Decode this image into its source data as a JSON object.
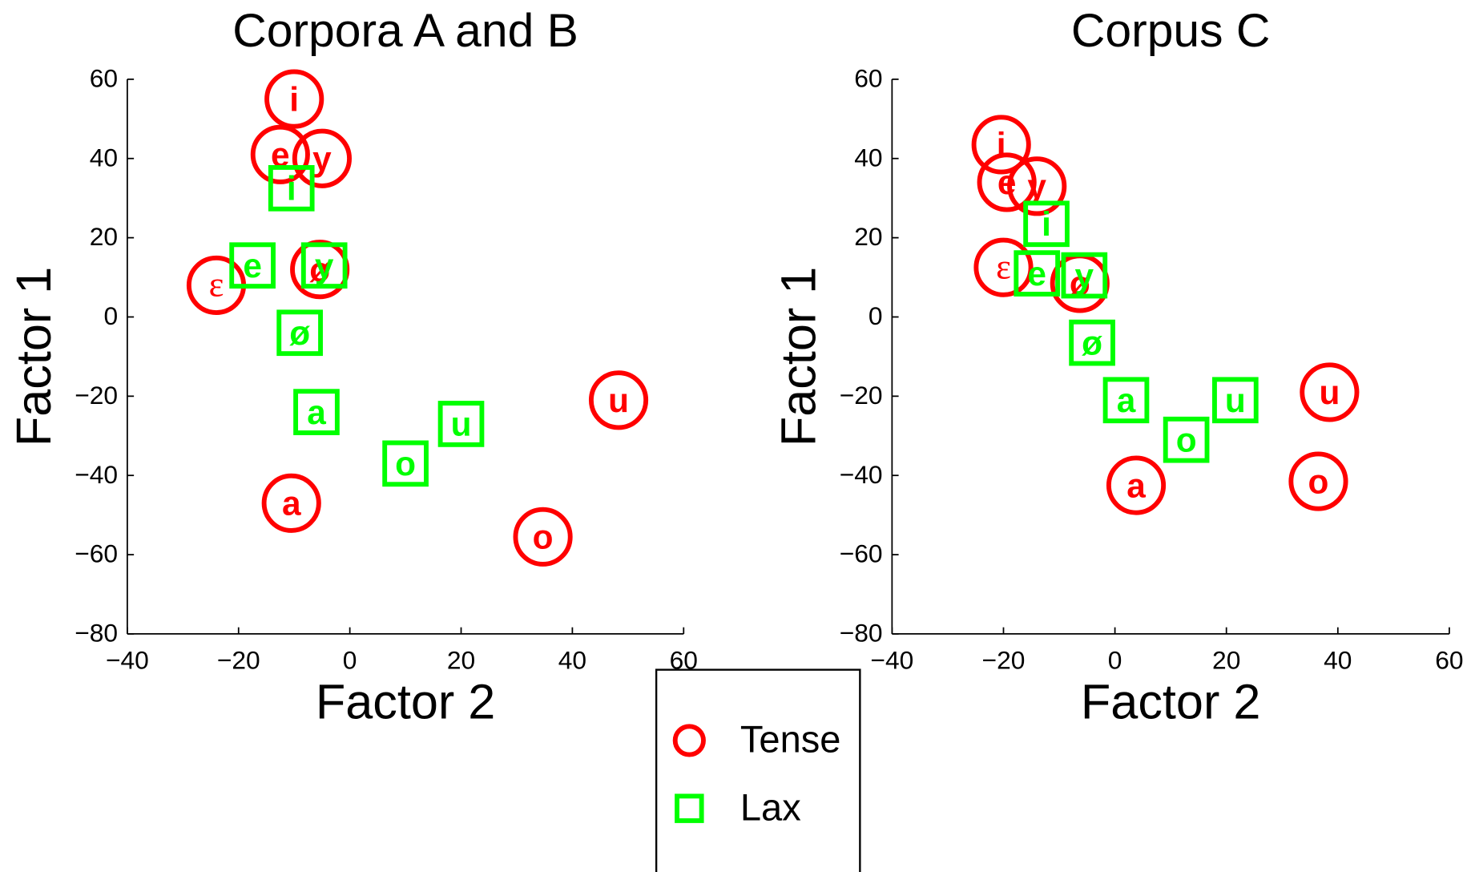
{
  "chart_data": [
    {
      "type": "scatter",
      "title": "Corpora A and B",
      "x_label": "Factor 2",
      "y_label": "Factor 1",
      "xlim": [
        -40,
        60
      ],
      "ylim": [
        -80,
        60
      ],
      "xticks": [
        {
          "value": -40,
          "label": "−40"
        },
        {
          "value": -20,
          "label": "−20"
        },
        0,
        20,
        40,
        60
      ],
      "yticks": [
        {
          "value": -80,
          "label": "−80"
        },
        {
          "value": -60,
          "label": "−60"
        },
        {
          "value": -40,
          "label": "−40"
        },
        {
          "value": -20,
          "label": "−20"
        },
        0,
        20,
        40,
        60
      ],
      "series": [
        {
          "name": "Tense",
          "marker": "circle",
          "color": "#ff0000",
          "labels": [
            "i",
            "e",
            "y",
            "ε",
            "ø",
            "a",
            "u",
            "o"
          ],
          "x": [
            -10,
            -12.5,
            -5,
            -24,
            -5.4,
            -10.5,
            48.3,
            34.7
          ],
          "values": [
            55,
            41,
            40,
            8,
            12,
            -47,
            -21,
            -55.5
          ]
        },
        {
          "name": "Lax",
          "marker": "square",
          "color": "#00ff00",
          "labels": [
            "i",
            "e",
            "y",
            "ø",
            "a",
            "u",
            "o"
          ],
          "x": [
            -10.5,
            -17.5,
            -4.6,
            -9,
            -6,
            20,
            10
          ],
          "values": [
            32.5,
            13,
            13,
            -4,
            -24,
            -27,
            -37
          ]
        }
      ]
    },
    {
      "type": "scatter",
      "title": "Corpus C",
      "x_label": "Factor 2",
      "y_label": "Factor 1",
      "xlim": [
        -40,
        60
      ],
      "ylim": [
        -80,
        60
      ],
      "xticks": [
        {
          "value": -40,
          "label": "−40"
        },
        {
          "value": -20,
          "label": "−20"
        },
        0,
        20,
        40,
        60
      ],
      "yticks": [
        {
          "value": -80,
          "label": "−80"
        },
        {
          "value": -60,
          "label": "−60"
        },
        {
          "value": -40,
          "label": "−40"
        },
        {
          "value": -20,
          "label": "−20"
        },
        0,
        20,
        40,
        60
      ],
      "series": [
        {
          "marker": "circle",
          "color": "#ff0000",
          "labels": [
            "i",
            "e",
            "y",
            "ε",
            "ø",
            "a",
            "u",
            "o"
          ],
          "x": [
            -20.4,
            -19.4,
            -14,
            -20,
            -6.3,
            3.8,
            38.5,
            36.5
          ],
          "values": [
            43.5,
            34,
            33,
            12.5,
            8.5,
            -42.5,
            -19,
            -41.5
          ]
        },
        {
          "marker": "square",
          "color": "#00ff00",
          "labels": [
            "i",
            "e",
            "y",
            "ø",
            "a",
            "u",
            "o"
          ],
          "x": [
            -12.3,
            -14,
            -5.5,
            -4.1,
            2,
            21.6,
            12.8
          ],
          "values": [
            23.5,
            11,
            10.5,
            -6.5,
            -21,
            -21,
            -31
          ]
        }
      ]
    }
  ]
}
